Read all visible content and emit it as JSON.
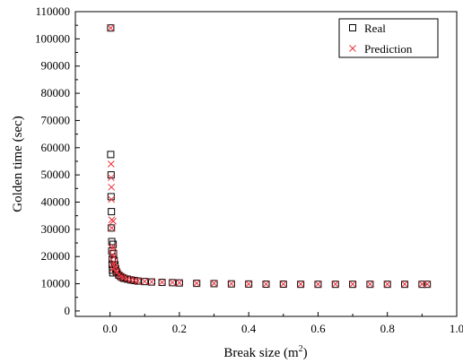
{
  "chart_data": {
    "type": "scatter",
    "title": "",
    "xlabel_main": "Break size (m",
    "xlabel_sup": "2",
    "xlabel_close": ")",
    "ylabel": "Golden time (sec)",
    "xlim": [
      -0.1,
      1.0
    ],
    "ylim": [
      -2000,
      110000
    ],
    "xticks": [
      0.0,
      0.2,
      0.4,
      0.6,
      0.8,
      1.0
    ],
    "xtick_labels": [
      "0.0",
      "0.2",
      "0.4",
      "0.6",
      "0.8",
      "1.0"
    ],
    "yticks": [
      0,
      10000,
      20000,
      30000,
      40000,
      50000,
      60000,
      70000,
      80000,
      90000,
      100000,
      110000
    ],
    "ytick_labels": [
      "0",
      "10000",
      "20000",
      "30000",
      "40000",
      "50000",
      "60000",
      "70000",
      "80000",
      "90000",
      "100000",
      "110000"
    ],
    "grid": false,
    "legend_position": "top-right",
    "series": [
      {
        "name": "Real",
        "marker": "open-square",
        "color": "#000000",
        "x": [
          0.002,
          0.002,
          0.003,
          0.003,
          0.004,
          0.004,
          0.005,
          0.005,
          0.006,
          0.006,
          0.007,
          0.008,
          0.009,
          0.01,
          0.012,
          0.014,
          0.016,
          0.018,
          0.02,
          0.025,
          0.03,
          0.035,
          0.04,
          0.05,
          0.06,
          0.07,
          0.08,
          0.1,
          0.12,
          0.15,
          0.18,
          0.2,
          0.25,
          0.3,
          0.35,
          0.4,
          0.45,
          0.5,
          0.55,
          0.6,
          0.65,
          0.7,
          0.75,
          0.8,
          0.85,
          0.9,
          0.915
        ],
        "y": [
          104000,
          57500,
          50000,
          42000,
          36500,
          30500,
          25500,
          22000,
          19000,
          17000,
          15000,
          14000,
          24500,
          21000,
          18500,
          17000,
          15500,
          14500,
          14000,
          13200,
          12700,
          12300,
          12000,
          11700,
          11400,
          11200,
          11000,
          10800,
          10650,
          10500,
          10400,
          10300,
          10150,
          10050,
          9950,
          9900,
          9850,
          9850,
          9800,
          9800,
          9800,
          9800,
          9800,
          9800,
          9800,
          9800,
          9800
        ]
      },
      {
        "name": "Prediction",
        "marker": "x",
        "color": "#e8323c",
        "x": [
          0.002,
          0.003,
          0.003,
          0.004,
          0.004,
          0.005,
          0.005,
          0.006,
          0.006,
          0.007,
          0.008,
          0.009,
          0.01,
          0.012,
          0.014,
          0.016,
          0.018,
          0.02,
          0.025,
          0.03,
          0.035,
          0.04,
          0.05,
          0.06,
          0.07,
          0.08,
          0.1,
          0.12,
          0.15,
          0.18,
          0.2,
          0.25,
          0.3,
          0.35,
          0.4,
          0.45,
          0.5,
          0.55,
          0.6,
          0.65,
          0.7,
          0.75,
          0.8,
          0.85,
          0.9,
          0.915
        ],
        "y": [
          104000,
          54000,
          49000,
          45500,
          41000,
          33500,
          30500,
          23000,
          20500,
          17500,
          15500,
          33000,
          23500,
          20000,
          17500,
          16000,
          14800,
          14200,
          13300,
          12800,
          12400,
          12100,
          11750,
          11450,
          11250,
          11050,
          10850,
          10700,
          10550,
          10450,
          10350,
          10200,
          10100,
          10000,
          9950,
          9900,
          9900,
          9850,
          9850,
          9850,
          9850,
          9850,
          9850,
          9850,
          9850,
          9850
        ]
      }
    ]
  }
}
